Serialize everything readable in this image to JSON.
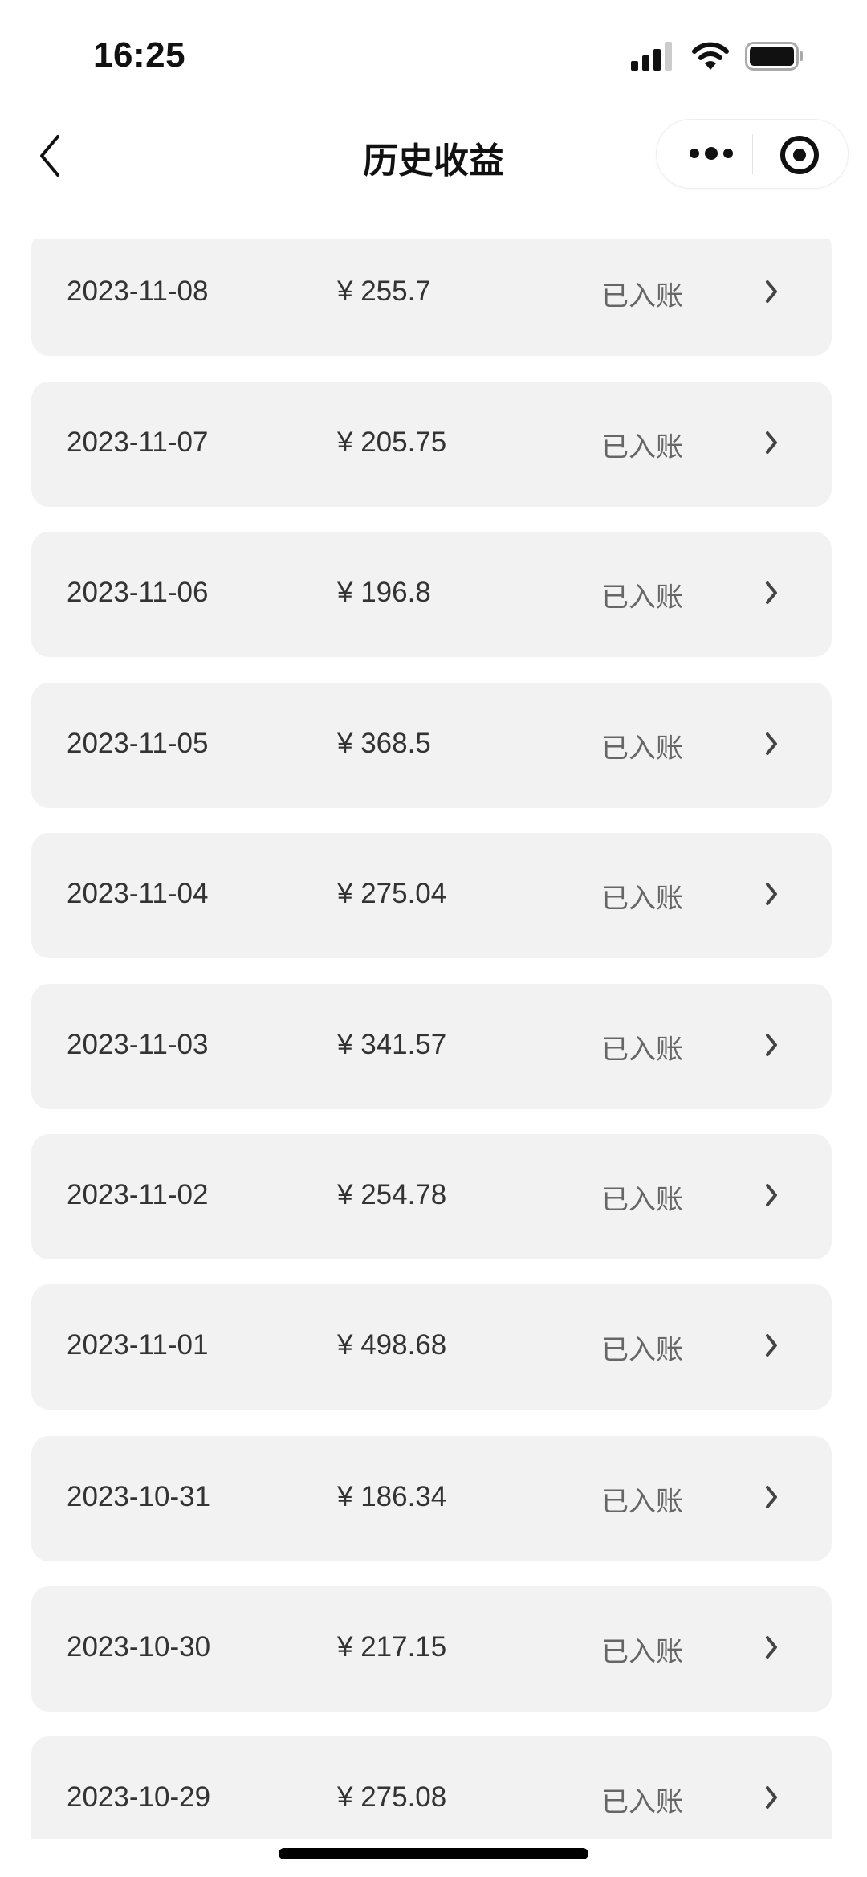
{
  "status_bar": {
    "time": "16:25",
    "icons": [
      "cellular-signal-icon",
      "wifi-icon",
      "battery-icon"
    ]
  },
  "nav": {
    "title": "历史收益",
    "back_icon": "chevron-left-icon",
    "more_icon": "more-dots-icon",
    "close_icon": "target-circle-icon"
  },
  "colors": {
    "row_bg": "#f2f2f2",
    "text": "#333333",
    "status_text": "#666666"
  },
  "records": [
    {
      "date": "2023-11-08",
      "amount": "¥ 255.7",
      "status": "已入账"
    },
    {
      "date": "2023-11-07",
      "amount": "¥ 205.75",
      "status": "已入账"
    },
    {
      "date": "2023-11-06",
      "amount": "¥ 196.8",
      "status": "已入账"
    },
    {
      "date": "2023-11-05",
      "amount": "¥ 368.5",
      "status": "已入账"
    },
    {
      "date": "2023-11-04",
      "amount": "¥ 275.04",
      "status": "已入账"
    },
    {
      "date": "2023-11-03",
      "amount": "¥ 341.57",
      "status": "已入账"
    },
    {
      "date": "2023-11-02",
      "amount": "¥ 254.78",
      "status": "已入账"
    },
    {
      "date": "2023-11-01",
      "amount": "¥ 498.68",
      "status": "已入账"
    },
    {
      "date": "2023-10-31",
      "amount": "¥ 186.34",
      "status": "已入账"
    },
    {
      "date": "2023-10-30",
      "amount": "¥ 217.15",
      "status": "已入账"
    },
    {
      "date": "2023-10-29",
      "amount": "¥ 275.08",
      "status": "已入账"
    }
  ]
}
